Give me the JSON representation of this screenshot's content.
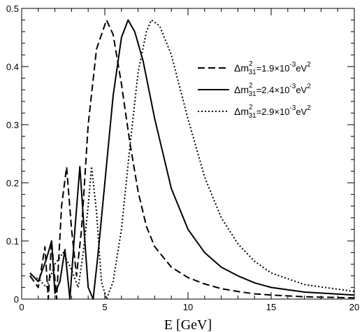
{
  "chart_data": {
    "type": "line",
    "title": "",
    "xlabel": "E [GeV]",
    "ylabel": "",
    "xlim": [
      0,
      20
    ],
    "ylim": [
      0,
      0.5
    ],
    "x_ticks": [
      "0",
      "5",
      "10",
      "15",
      "20"
    ],
    "y_ticks": [
      "0",
      "0.1",
      "0.2",
      "0.3",
      "0.4",
      "0.5"
    ],
    "grid": false,
    "legend_position": "upper-right",
    "colors": {
      "line": "#000000",
      "frame": "#000000"
    },
    "series": [
      {
        "name": "Δm²₃₁ = 1.9×10⁻³ eV²",
        "legend": {
          "prefix": "Δm",
          "sup": "2",
          "sub": "31",
          "mid": "=1.9×10",
          "exp": "-3",
          "unit": "eV",
          "unit_sup": "2"
        },
        "style": "dashed",
        "peak_x": 5.1,
        "peak_y": 0.48,
        "points": [
          [
            0.5,
            0.04
          ],
          [
            1.0,
            0.02
          ],
          [
            1.4,
            0.09
          ],
          [
            1.6,
            0.0
          ],
          [
            1.8,
            0.1
          ],
          [
            2.1,
            0.0
          ],
          [
            2.4,
            0.16
          ],
          [
            2.7,
            0.227
          ],
          [
            3.0,
            0.12
          ],
          [
            3.3,
            0.04
          ],
          [
            3.6,
            0.12
          ],
          [
            4.0,
            0.3
          ],
          [
            4.5,
            0.43
          ],
          [
            5.1,
            0.48
          ],
          [
            5.5,
            0.455
          ],
          [
            6.0,
            0.37
          ],
          [
            6.5,
            0.27
          ],
          [
            7.0,
            0.185
          ],
          [
            7.5,
            0.125
          ],
          [
            8.0,
            0.09
          ],
          [
            9.0,
            0.055
          ],
          [
            10.0,
            0.037
          ],
          [
            11.0,
            0.026
          ],
          [
            12.0,
            0.018
          ],
          [
            13.0,
            0.013
          ],
          [
            14.0,
            0.009
          ],
          [
            15.0,
            0.007
          ],
          [
            17.0,
            0.004
          ],
          [
            20.0,
            0.002
          ]
        ]
      },
      {
        "name": "Δm²₃₁ = 2.4×10⁻³ eV²",
        "legend": {
          "prefix": "Δm",
          "sup": "2",
          "sub": "31",
          "mid": "=2.4×10",
          "exp": "-3",
          "unit": "eV",
          "unit_sup": "2"
        },
        "style": "solid",
        "peak_x": 6.4,
        "peak_y": 0.48,
        "points": [
          [
            0.5,
            0.045
          ],
          [
            1.0,
            0.03
          ],
          [
            1.5,
            0.07
          ],
          [
            1.8,
            0.1
          ],
          [
            2.0,
            0.01
          ],
          [
            2.3,
            0.03
          ],
          [
            2.6,
            0.085
          ],
          [
            2.9,
            0.0
          ],
          [
            3.2,
            0.12
          ],
          [
            3.5,
            0.228
          ],
          [
            3.8,
            0.1
          ],
          [
            4.0,
            0.02
          ],
          [
            4.3,
            0.0
          ],
          [
            4.6,
            0.08
          ],
          [
            5.0,
            0.2
          ],
          [
            5.5,
            0.35
          ],
          [
            6.0,
            0.45
          ],
          [
            6.4,
            0.48
          ],
          [
            6.8,
            0.46
          ],
          [
            7.3,
            0.41
          ],
          [
            8.0,
            0.31
          ],
          [
            9.0,
            0.19
          ],
          [
            10.0,
            0.12
          ],
          [
            11.0,
            0.08
          ],
          [
            12.0,
            0.055
          ],
          [
            13.0,
            0.04
          ],
          [
            14.0,
            0.028
          ],
          [
            15.0,
            0.02
          ],
          [
            17.0,
            0.012
          ],
          [
            20.0,
            0.007
          ]
        ]
      },
      {
        "name": "Δm²₃₁ = 2.9×10⁻³ eV²",
        "legend": {
          "prefix": "Δm",
          "sup": "2",
          "sub": "31",
          "mid": "=2.9×10",
          "exp": "-3",
          "unit": "eV",
          "unit_sup": "2"
        },
        "style": "dotted",
        "peak_x": 7.8,
        "peak_y": 0.48,
        "points": [
          [
            0.5,
            0.04
          ],
          [
            1.0,
            0.035
          ],
          [
            1.5,
            0.02
          ],
          [
            2.0,
            0.06
          ],
          [
            2.5,
            0.08
          ],
          [
            3.0,
            0.05
          ],
          [
            3.4,
            0.02
          ],
          [
            3.7,
            0.08
          ],
          [
            4.0,
            0.16
          ],
          [
            4.2,
            0.228
          ],
          [
            4.5,
            0.15
          ],
          [
            4.8,
            0.03
          ],
          [
            5.1,
            0.0
          ],
          [
            5.5,
            0.03
          ],
          [
            6.0,
            0.12
          ],
          [
            6.5,
            0.26
          ],
          [
            7.0,
            0.39
          ],
          [
            7.5,
            0.46
          ],
          [
            7.8,
            0.48
          ],
          [
            8.3,
            0.47
          ],
          [
            9.0,
            0.42
          ],
          [
            10.0,
            0.31
          ],
          [
            11.0,
            0.21
          ],
          [
            12.0,
            0.14
          ],
          [
            13.0,
            0.095
          ],
          [
            14.0,
            0.065
          ],
          [
            15.0,
            0.045
          ],
          [
            17.0,
            0.025
          ],
          [
            20.0,
            0.013
          ]
        ]
      }
    ]
  }
}
